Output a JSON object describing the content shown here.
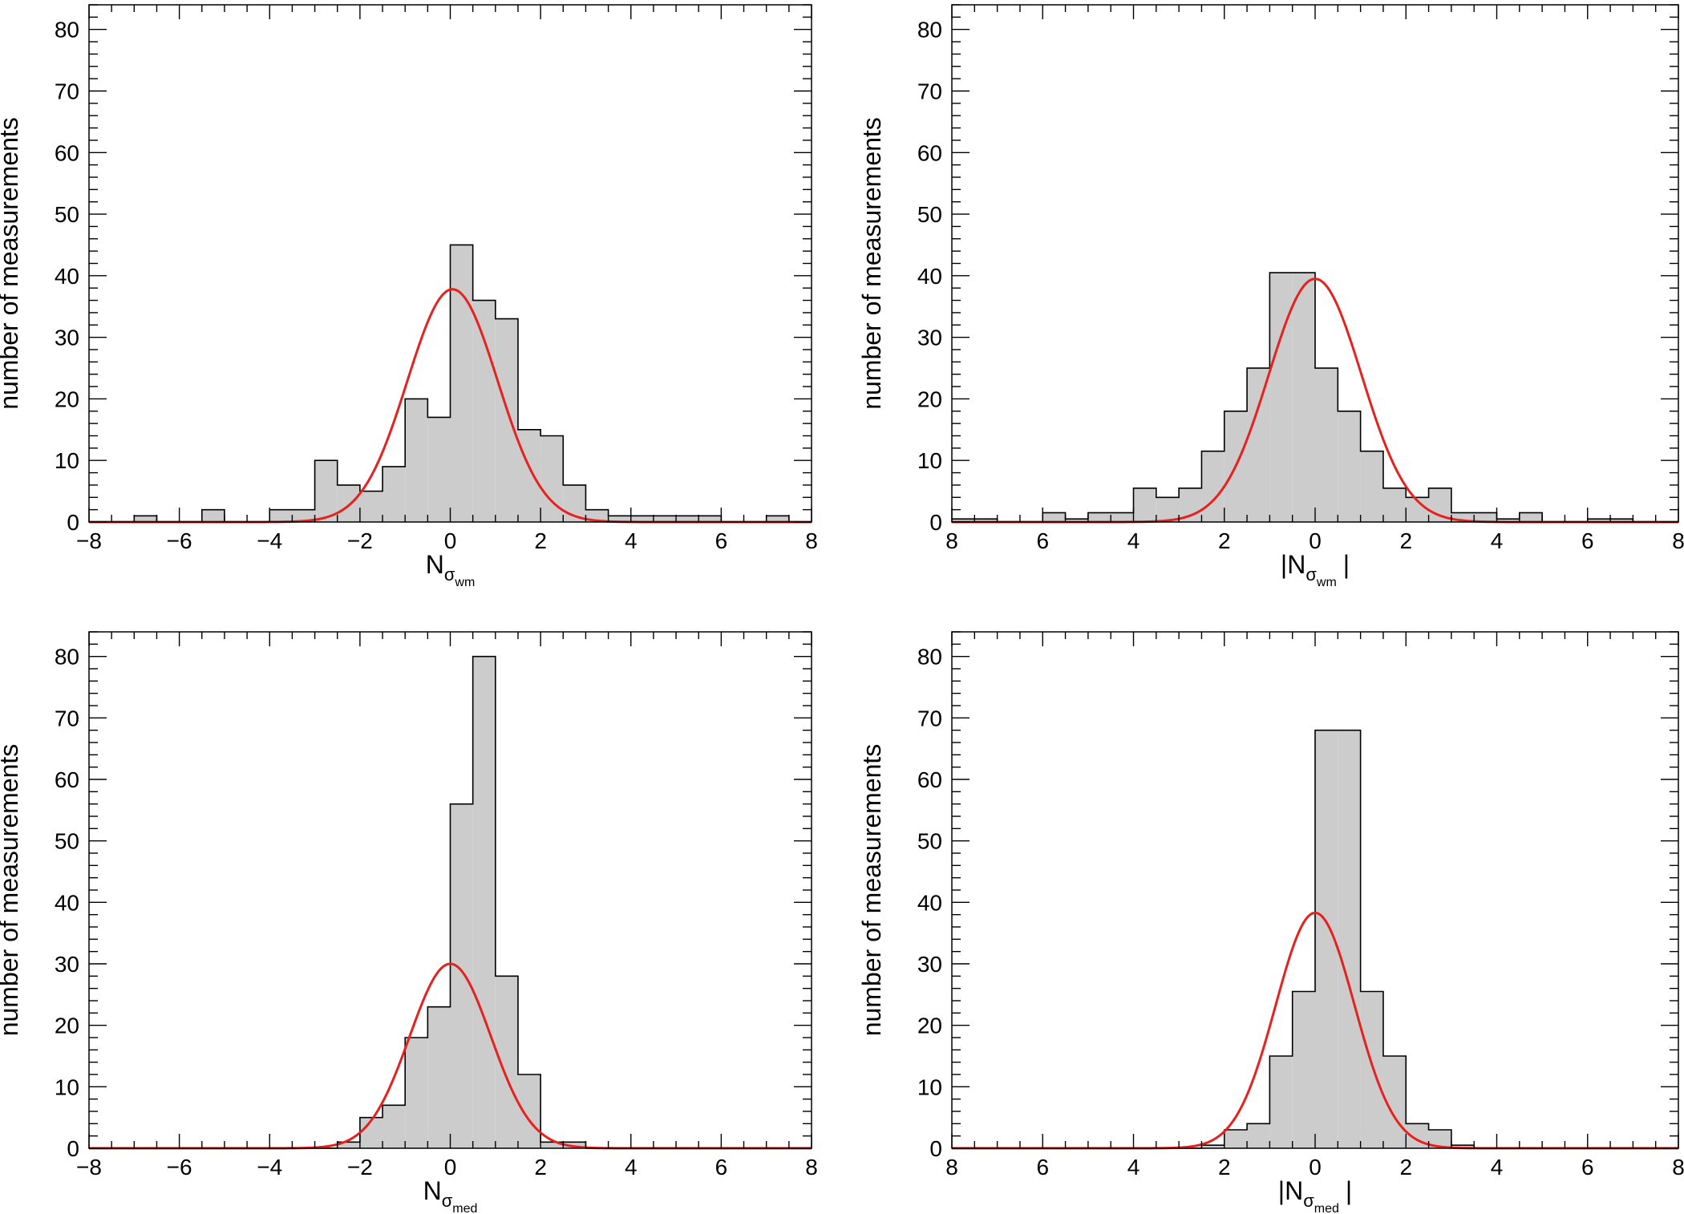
{
  "colors": {
    "bar_fill": "#cccccc",
    "bar_stroke": "#000000",
    "fit_line": "#e8201e",
    "axis": "#000000",
    "background": "#ffffff"
  },
  "chart_data": [
    {
      "id": "panel-top-left",
      "type": "bar",
      "title": "",
      "xlabel": "N",
      "xlabel_subscript": "σ",
      "xlabel_subsubscript": "wm",
      "xlabel_abs": false,
      "ylabel": "number of measurements",
      "xlim": [
        -8,
        8
      ],
      "ylim": [
        0,
        84
      ],
      "xticks": [
        -8,
        -6,
        -4,
        -2,
        0,
        2,
        4,
        6,
        8
      ],
      "xtick_labels": [
        "−8",
        "−6",
        "−4",
        "−2",
        "0",
        "2",
        "4",
        "6",
        "8"
      ],
      "yticks": [
        0,
        10,
        20,
        30,
        40,
        50,
        60,
        70,
        80
      ],
      "ytick_labels": [
        "0",
        "10",
        "20",
        "30",
        "40",
        "50",
        "60",
        "70",
        "80"
      ],
      "bin_start": -8,
      "bin_width": 0.5,
      "values": [
        0,
        0,
        1,
        0,
        0,
        2,
        0,
        0,
        2,
        2,
        10,
        6,
        5,
        9,
        20,
        17,
        45,
        36,
        33,
        15,
        14,
        6,
        2,
        1,
        1,
        1,
        1,
        1,
        0,
        0,
        1,
        0
      ],
      "fit": {
        "type": "gaussian",
        "amplitude": 37.8,
        "mean": 0.05,
        "sigma": 1.0
      }
    },
    {
      "id": "panel-top-right",
      "type": "bar",
      "title": "",
      "xlabel": "N",
      "xlabel_subscript": "σ",
      "xlabel_subsubscript": "wm",
      "xlabel_abs": true,
      "ylabel": "number of measurements",
      "xlim": [
        -8,
        8
      ],
      "ylim": [
        0,
        84
      ],
      "xticks": [
        -8,
        -6,
        -4,
        -2,
        0,
        2,
        4,
        6,
        8
      ],
      "xtick_labels": [
        "8",
        "6",
        "4",
        "2",
        "0",
        "2",
        "4",
        "6",
        "8"
      ],
      "yticks": [
        0,
        10,
        20,
        30,
        40,
        50,
        60,
        70,
        80
      ],
      "ytick_labels": [
        "0",
        "10",
        "20",
        "30",
        "40",
        "50",
        "60",
        "70",
        "80"
      ],
      "bin_start": -8,
      "bin_width": 0.5,
      "values": [
        0.5,
        0.5,
        0,
        0,
        1.5,
        0.5,
        1.5,
        1.5,
        5.5,
        4,
        5.5,
        11.5,
        18,
        25,
        40.5,
        40.5,
        25,
        18,
        11.5,
        5.5,
        4,
        5.5,
        1.5,
        1.5,
        0.5,
        1.5,
        0,
        0,
        0.5,
        0.5,
        0,
        0
      ],
      "fit": {
        "type": "gaussian",
        "amplitude": 39.5,
        "mean": 0.0,
        "sigma": 1.02
      }
    },
    {
      "id": "panel-bottom-left",
      "type": "bar",
      "title": "",
      "xlabel": "N",
      "xlabel_subscript": "σ",
      "xlabel_subsubscript": "med",
      "xlabel_abs": false,
      "ylabel": "number of measurements",
      "xlim": [
        -8,
        8
      ],
      "ylim": [
        0,
        84
      ],
      "xticks": [
        -8,
        -6,
        -4,
        -2,
        0,
        2,
        4,
        6,
        8
      ],
      "xtick_labels": [
        "−8",
        "−6",
        "−4",
        "−2",
        "0",
        "2",
        "4",
        "6",
        "8"
      ],
      "yticks": [
        0,
        10,
        20,
        30,
        40,
        50,
        60,
        70,
        80
      ],
      "ytick_labels": [
        "0",
        "10",
        "20",
        "30",
        "40",
        "50",
        "60",
        "70",
        "80"
      ],
      "bin_start": -8,
      "bin_width": 0.5,
      "values": [
        0,
        0,
        0,
        0,
        0,
        0,
        0,
        0,
        0,
        0,
        0,
        1,
        5,
        7,
        18,
        23,
        56,
        80,
        28,
        12,
        1,
        1,
        0,
        0,
        0,
        0,
        0,
        0,
        0,
        0,
        0,
        0
      ],
      "fit": {
        "type": "gaussian",
        "amplitude": 30.0,
        "mean": 0.0,
        "sigma": 0.9
      }
    },
    {
      "id": "panel-bottom-right",
      "type": "bar",
      "title": "",
      "xlabel": "N",
      "xlabel_subscript": "σ",
      "xlabel_subsubscript": "med",
      "xlabel_abs": true,
      "ylabel": "number of measurements",
      "xlim": [
        -8,
        8
      ],
      "ylim": [
        0,
        84
      ],
      "xticks": [
        -8,
        -6,
        -4,
        -2,
        0,
        2,
        4,
        6,
        8
      ],
      "xtick_labels": [
        "8",
        "6",
        "4",
        "2",
        "0",
        "2",
        "4",
        "6",
        "8"
      ],
      "yticks": [
        0,
        10,
        20,
        30,
        40,
        50,
        60,
        70,
        80
      ],
      "ytick_labels": [
        "0",
        "10",
        "20",
        "30",
        "40",
        "50",
        "60",
        "70",
        "80"
      ],
      "bin_start": -8,
      "bin_width": 0.5,
      "values": [
        0,
        0,
        0,
        0,
        0,
        0,
        0,
        0,
        0,
        0,
        0,
        0.5,
        3,
        4,
        15,
        25.5,
        68,
        68,
        25.5,
        15,
        4,
        3,
        0.5,
        0,
        0,
        0,
        0,
        0,
        0,
        0,
        0,
        0
      ],
      "fit": {
        "type": "gaussian",
        "amplitude": 38.3,
        "mean": 0.0,
        "sigma": 0.87
      }
    }
  ]
}
